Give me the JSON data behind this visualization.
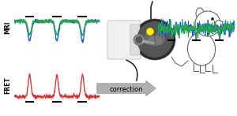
{
  "mri_color": "#cc3333",
  "mri_fill_color": "#ee9999",
  "fret_blue_color": "#2255cc",
  "fret_blue_fill": "#7799dd",
  "fret_green_color": "#22aa44",
  "fret_green_fill": "#77cc99",
  "label_mri": "MRI",
  "label_fret": "FRET",
  "label_correction": "correction",
  "arrow_fc": "#aaaaaa",
  "arrow_ec": "#888888",
  "tick_color": "#111111",
  "scanner_fc": "#eeeeee",
  "scanner_ec": "#aaaaaa",
  "brain_fc": "#444444",
  "yellow_fc": "#ffee00",
  "rat_ec": "#555555",
  "bg": "white"
}
